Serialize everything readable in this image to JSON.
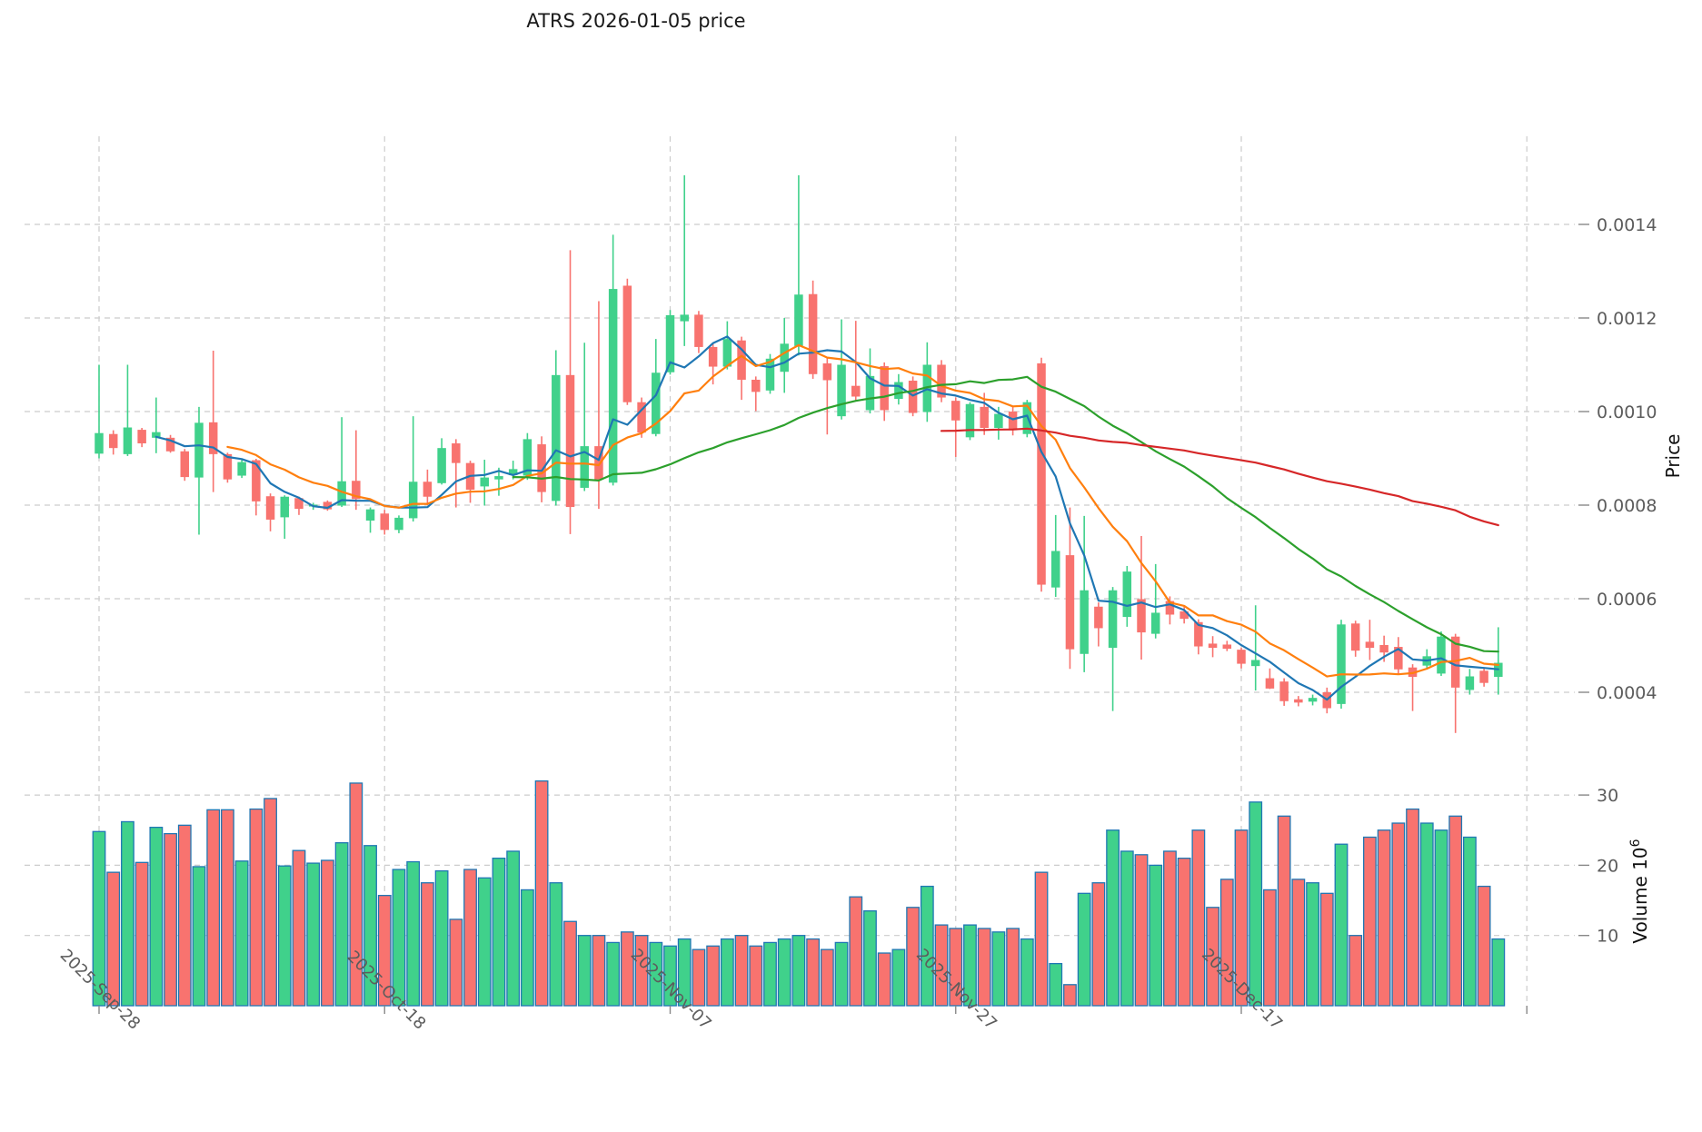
{
  "chart_data": {
    "type": "candlestick",
    "title": "ATRS  2026-01-05  price",
    "ylabel": "Price",
    "volume_label": "Volume",
    "volume_label_base": "10",
    "volume_label_exp": "6",
    "legend_position": "none",
    "grid": true,
    "colors": {
      "up": "#40d18b",
      "down": "#f8736f",
      "volume_edge": "#1f77b4",
      "ma": [
        "#1f77b4",
        "#ff7f0e",
        "#2ca02c",
        "#d62728"
      ],
      "gridline": "#cccccc",
      "tick_label": "#5c5c5c",
      "tick_mark": "#888888",
      "title_color": "#1a1a1a",
      "axis_label_color": "#111111"
    },
    "ma_windows": [
      5,
      10,
      30,
      60
    ],
    "price_axis": {
      "ticks": [
        0.0004,
        0.0006,
        0.0008,
        0.001,
        0.0012,
        0.0014
      ],
      "side": "right"
    },
    "volume_axis": {
      "ticks": [
        10,
        20,
        30
      ],
      "scale": "1e6",
      "side": "right"
    },
    "x_axis": {
      "tick_labels": [
        "2025-Sep-28",
        "2025-Oct-18",
        "2025-Nov-07",
        "2025-Nov-27",
        "2025-Dec-17"
      ],
      "tick_indices": [
        0,
        20,
        40,
        60,
        80
      ],
      "extra_gridline_indices": [
        100
      ],
      "label_rotation_deg": 45
    },
    "volume_unit": "millions",
    "candles": [
      [
        "2025-09-28",
        0.00091,
        0.0011,
        0.0009,
        0.000954,
        24.8
      ],
      [
        "2025-09-29",
        0.000952,
        0.00096,
        0.000908,
        0.000922,
        19.0
      ],
      [
        "2025-09-30",
        0.000909,
        0.0011,
        0.000905,
        0.000966,
        26.2
      ],
      [
        "2025-10-01",
        0.000961,
        0.000965,
        0.000924,
        0.000932,
        20.4
      ],
      [
        "2025-10-02",
        0.000944,
        0.00103,
        0.000911,
        0.000956,
        25.4
      ],
      [
        "2025-10-03",
        0.000944,
        0.00095,
        0.000912,
        0.000915,
        24.5
      ],
      [
        "2025-10-04",
        0.000915,
        0.00092,
        0.000852,
        0.00086,
        25.7
      ],
      [
        "2025-10-05",
        0.000859,
        0.00101,
        0.000737,
        0.000976,
        19.8
      ],
      [
        "2025-10-06",
        0.000977,
        0.00113,
        0.000828,
        0.000909,
        27.9
      ],
      [
        "2025-10-07",
        0.000909,
        0.000912,
        0.000848,
        0.000855,
        27.9
      ],
      [
        "2025-10-08",
        0.000863,
        0.000897,
        0.000858,
        0.000892,
        20.6
      ],
      [
        "2025-10-09",
        0.000896,
        0.000899,
        0.000778,
        0.000808,
        28.0
      ],
      [
        "2025-10-10",
        0.000819,
        0.000825,
        0.000744,
        0.000769,
        29.5
      ],
      [
        "2025-10-11",
        0.000774,
        0.000821,
        0.000728,
        0.000818,
        19.9
      ],
      [
        "2025-10-12",
        0.000815,
        0.000818,
        0.000779,
        0.000792,
        22.1
      ],
      [
        "2025-10-13",
        0.000797,
        0.000805,
        0.00079,
        0.000801,
        20.3
      ],
      [
        "2025-10-14",
        0.000807,
        0.00081,
        0.000788,
        0.000791,
        20.7
      ],
      [
        "2025-10-15",
        0.000799,
        0.000988,
        0.000796,
        0.000851,
        23.2
      ],
      [
        "2025-10-16",
        0.000852,
        0.00096,
        0.00079,
        0.000813,
        31.7
      ],
      [
        "2025-10-17",
        0.000767,
        0.000795,
        0.000741,
        0.000791,
        22.8
      ],
      [
        "2025-10-18",
        0.000782,
        0.00079,
        0.000737,
        0.000747,
        15.7
      ],
      [
        "2025-10-19",
        0.000747,
        0.000778,
        0.00074,
        0.000773,
        19.4
      ],
      [
        "2025-10-20",
        0.000772,
        0.00099,
        0.000765,
        0.00085,
        20.5
      ],
      [
        "2025-10-21",
        0.00085,
        0.000876,
        0.0008,
        0.000818,
        17.5
      ],
      [
        "2025-10-22",
        0.000847,
        0.000943,
        0.000844,
        0.000922,
        19.2
      ],
      [
        "2025-10-23",
        0.000932,
        0.000941,
        0.000795,
        0.00089,
        12.3
      ],
      [
        "2025-10-24",
        0.00089,
        0.000895,
        0.000805,
        0.000833,
        19.4
      ],
      [
        "2025-10-25",
        0.00084,
        0.000897,
        0.000799,
        0.000859,
        18.2
      ],
      [
        "2025-10-26",
        0.000855,
        0.00088,
        0.00082,
        0.000862,
        21.0
      ],
      [
        "2025-10-27",
        0.000864,
        0.000895,
        0.000855,
        0.000877,
        22.0
      ],
      [
        "2025-10-28",
        0.000863,
        0.000954,
        0.000854,
        0.000941,
        16.5
      ],
      [
        "2025-10-29",
        0.00093,
        0.000947,
        0.000806,
        0.000828,
        32.0
      ],
      [
        "2025-10-30",
        0.000809,
        0.001131,
        0.000799,
        0.001078,
        17.5
      ],
      [
        "2025-10-31",
        0.001078,
        0.001345,
        0.000738,
        0.000796,
        12.0
      ],
      [
        "2025-11-01",
        0.000837,
        0.001147,
        0.00083,
        0.000926,
        10.0
      ],
      [
        "2025-11-02",
        0.000926,
        0.001236,
        0.000792,
        0.000855,
        10.0
      ],
      [
        "2025-11-03",
        0.000848,
        0.001378,
        0.000842,
        0.001262,
        9.0
      ],
      [
        "2025-11-04",
        0.001269,
        0.001284,
        0.001014,
        0.00102,
        10.5
      ],
      [
        "2025-11-05",
        0.00102,
        0.00103,
        0.000944,
        0.000955,
        10.0
      ],
      [
        "2025-11-06",
        0.000952,
        0.001155,
        0.000947,
        0.001083,
        9.0
      ],
      [
        "2025-11-07",
        0.001084,
        0.001217,
        0.001079,
        0.001206,
        8.5
      ],
      [
        "2025-11-08",
        0.001193,
        0.001505,
        0.00114,
        0.001207,
        9.5
      ],
      [
        "2025-11-09",
        0.001207,
        0.001215,
        0.001125,
        0.001138,
        8.0
      ],
      [
        "2025-11-10",
        0.001138,
        0.001145,
        0.001058,
        0.001096,
        8.5
      ],
      [
        "2025-11-11",
        0.001096,
        0.001193,
        0.00109,
        0.001155,
        9.5
      ],
      [
        "2025-11-12",
        0.001152,
        0.00116,
        0.001025,
        0.001068,
        10.0
      ],
      [
        "2025-11-13",
        0.001068,
        0.001075,
        0.001001,
        0.001042,
        8.5
      ],
      [
        "2025-11-14",
        0.001045,
        0.001123,
        0.001038,
        0.001113,
        9.0
      ],
      [
        "2025-11-15",
        0.001085,
        0.0012,
        0.00104,
        0.001145,
        9.5
      ],
      [
        "2025-11-16",
        0.00114,
        0.001505,
        0.00112,
        0.00125,
        10.0
      ],
      [
        "2025-11-17",
        0.001251,
        0.00128,
        0.00107,
        0.00108,
        9.5
      ],
      [
        "2025-11-18",
        0.001103,
        0.001115,
        0.000951,
        0.001067,
        8.0
      ],
      [
        "2025-11-19",
        0.00099,
        0.001197,
        0.000983,
        0.0011,
        9.0
      ],
      [
        "2025-11-20",
        0.001055,
        0.001194,
        0.001023,
        0.001032,
        15.5
      ],
      [
        "2025-11-21",
        0.001003,
        0.001135,
        0.000996,
        0.001076,
        13.5
      ],
      [
        "2025-11-22",
        0.001097,
        0.001105,
        0.00098,
        0.001003,
        7.5
      ],
      [
        "2025-11-23",
        0.001027,
        0.00108,
        0.001015,
        0.001063,
        8.0
      ],
      [
        "2025-11-24",
        0.001066,
        0.001075,
        0.00099,
        0.000997,
        14.0
      ],
      [
        "2025-11-25",
        0.000999,
        0.001148,
        0.000978,
        0.0011,
        17.0
      ],
      [
        "2025-11-26",
        0.0011,
        0.00111,
        0.00102,
        0.00103,
        11.5
      ],
      [
        "2025-11-27",
        0.001023,
        0.00103,
        0.000903,
        0.000981,
        11.0
      ],
      [
        "2025-11-28",
        0.000945,
        0.00102,
        0.000939,
        0.001016,
        11.5
      ],
      [
        "2025-11-29",
        0.00101,
        0.00104,
        0.00095,
        0.000965,
        11.0
      ],
      [
        "2025-11-30",
        0.000965,
        0.00101,
        0.00094,
        0.000995,
        10.5
      ],
      [
        "2025-12-01",
        0.001,
        0.00101,
        0.000949,
        0.00096,
        11.0
      ],
      [
        "2025-12-02",
        0.000952,
        0.001025,
        0.000945,
        0.00102,
        9.5
      ],
      [
        "2025-12-03",
        0.001103,
        0.001115,
        0.000615,
        0.00063,
        19.0
      ],
      [
        "2025-12-04",
        0.000624,
        0.000779,
        0.000604,
        0.000702,
        6.0
      ],
      [
        "2025-12-05",
        0.000693,
        0.000795,
        0.00045,
        0.000492,
        3.0
      ],
      [
        "2025-12-06",
        0.000482,
        0.000777,
        0.000443,
        0.000618,
        16.0
      ],
      [
        "2025-12-07",
        0.000583,
        0.000592,
        0.000498,
        0.000537,
        17.5
      ],
      [
        "2025-12-08",
        0.000495,
        0.000625,
        0.00036,
        0.000618,
        25.0
      ],
      [
        "2025-12-09",
        0.000561,
        0.00067,
        0.00054,
        0.000658,
        22.0
      ],
      [
        "2025-12-10",
        0.000599,
        0.000734,
        0.00047,
        0.000528,
        21.5
      ],
      [
        "2025-12-11",
        0.000525,
        0.000674,
        0.000515,
        0.00057,
        20.0
      ],
      [
        "2025-12-12",
        0.000595,
        0.000605,
        0.000545,
        0.000566,
        22.0
      ],
      [
        "2025-12-13",
        0.000573,
        0.000586,
        0.000547,
        0.000557,
        21.0
      ],
      [
        "2025-12-14",
        0.00055,
        0.000556,
        0.000481,
        0.000498,
        25.0
      ],
      [
        "2025-12-15",
        0.000504,
        0.00052,
        0.000475,
        0.000495,
        14.0
      ],
      [
        "2025-12-16",
        0.000502,
        0.00051,
        0.000488,
        0.000493,
        18.0
      ],
      [
        "2025-12-17",
        0.000491,
        0.000495,
        0.000451,
        0.000461,
        25.0
      ],
      [
        "2025-12-18",
        0.000456,
        0.000586,
        0.000404,
        0.000469,
        29.0
      ],
      [
        "2025-12-19",
        0.00043,
        0.000451,
        0.000407,
        0.000408,
        16.5
      ],
      [
        "2025-12-20",
        0.000423,
        0.00043,
        0.000371,
        0.000381,
        27.0
      ],
      [
        "2025-12-21",
        0.000385,
        0.000392,
        0.00037,
        0.000378,
        18.0
      ],
      [
        "2025-12-22",
        0.00038,
        0.000395,
        0.000372,
        0.000388,
        17.5
      ],
      [
        "2025-12-23",
        0.0004,
        0.00041,
        0.000355,
        0.000366,
        16.0
      ],
      [
        "2025-12-24",
        0.000375,
        0.000555,
        0.000365,
        0.000545,
        23.0
      ],
      [
        "2025-12-25",
        0.000547,
        0.000553,
        0.000476,
        0.000489,
        10.0
      ],
      [
        "2025-12-26",
        0.000508,
        0.000555,
        0.000469,
        0.000495,
        24.0
      ],
      [
        "2025-12-27",
        0.000501,
        0.000521,
        0.000465,
        0.000485,
        25.0
      ],
      [
        "2025-12-28",
        0.000497,
        0.000518,
        0.000439,
        0.000449,
        26.0
      ],
      [
        "2025-12-29",
        0.000453,
        0.00046,
        0.00036,
        0.000433,
        28.0
      ],
      [
        "2025-12-30",
        0.000457,
        0.000492,
        0.000449,
        0.000477,
        26.0
      ],
      [
        "2025-12-31",
        0.00044,
        0.00053,
        0.000435,
        0.000519,
        25.0
      ],
      [
        "2026-01-01",
        0.000519,
        0.000525,
        0.000313,
        0.00041,
        27.0
      ],
      [
        "2026-01-02",
        0.000405,
        0.00045,
        0.000395,
        0.000434,
        24.0
      ],
      [
        "2026-01-03",
        0.000446,
        0.000452,
        0.000412,
        0.00042,
        17.0
      ],
      [
        "2026-01-04",
        0.000433,
        0.000539,
        0.000395,
        0.000463,
        9.5
      ]
    ]
  }
}
